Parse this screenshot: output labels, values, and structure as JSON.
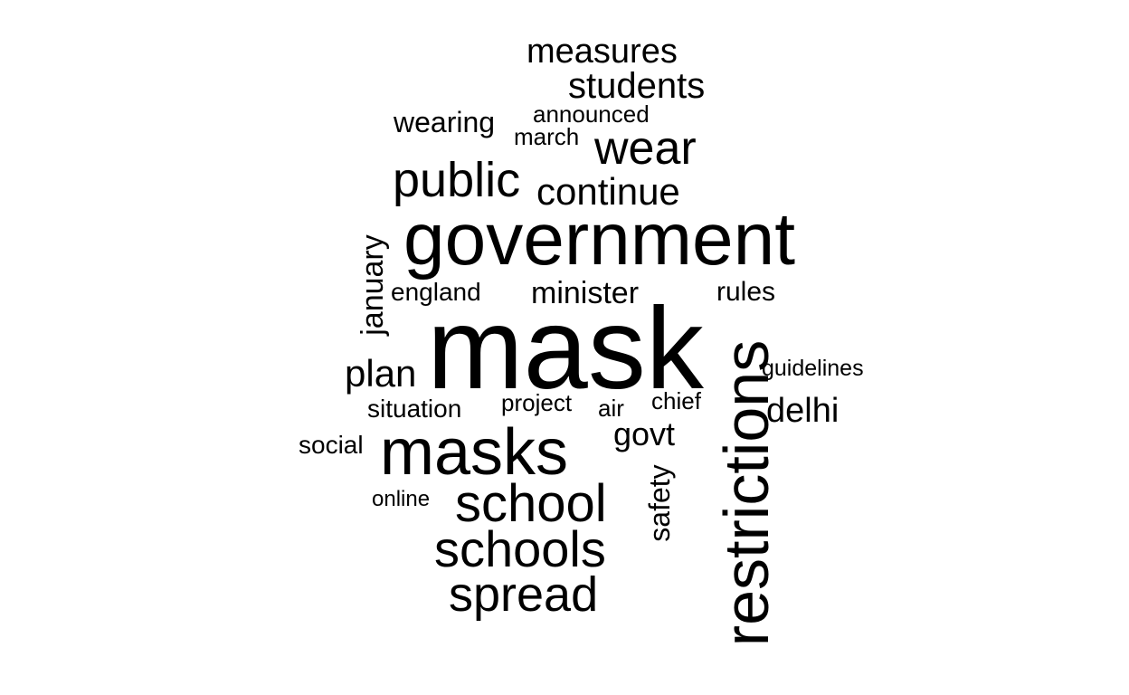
{
  "text_color": "#000000",
  "background_color": "#ffffff",
  "words": {
    "measures": "measures",
    "students": "students",
    "announced": "announced",
    "wearing": "wearing",
    "march": "march",
    "wear": "wear",
    "public": "public",
    "continue": "continue",
    "government": "government",
    "january": "january",
    "england": "england",
    "minister": "minister",
    "rules": "rules",
    "mask": "mask",
    "restrictions": "restrictions",
    "guidelines": "guidelines",
    "plan": "plan",
    "situation": "situation",
    "project": "project",
    "air": "air",
    "chief": "chief",
    "delhi": "delhi",
    "social": "social",
    "masks": "masks",
    "govt": "govt",
    "online": "online",
    "safety": "safety",
    "school": "school",
    "schools": "schools",
    "spread": "spread"
  }
}
